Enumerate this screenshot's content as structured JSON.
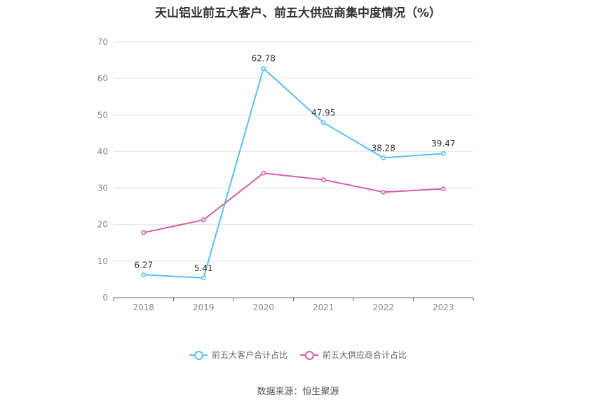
{
  "title": "天山铝业前五大客户、前五大供应商集中度情况（%）",
  "source": "数据来源：恒生聚源",
  "chart_data": {
    "type": "line",
    "title": "天山铝业前五大客户、前五大供应商集中度情况（%）",
    "x": [
      "2018",
      "2019",
      "2020",
      "2021",
      "2022",
      "2023"
    ],
    "ylim": [
      0,
      70
    ],
    "yticks": [
      0,
      10,
      20,
      30,
      40,
      50,
      60,
      70
    ],
    "grid": true,
    "legend_position": "bottom",
    "series": [
      {
        "name": "前五大客户合计占比",
        "color": "#5bc0ee",
        "values": [
          6.27,
          5.41,
          62.78,
          47.95,
          38.28,
          39.47
        ],
        "labels": [
          "6.27",
          "5.41",
          "62.78",
          "47.95",
          "38.28",
          "39.47"
        ]
      },
      {
        "name": "前五大供应商合计占比",
        "color": "#cc63a8",
        "values": [
          17.8,
          21.3,
          34.1,
          32.3,
          28.9,
          29.8
        ]
      }
    ]
  }
}
